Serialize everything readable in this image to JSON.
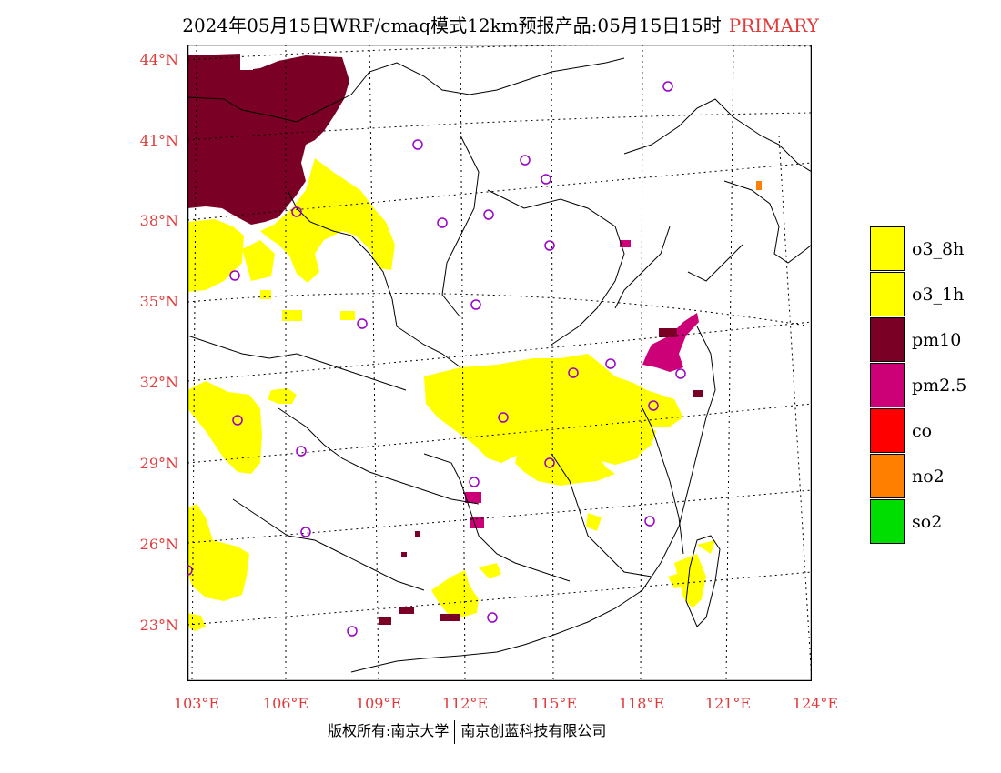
{
  "title": {
    "main": "2024年05月15日WRF/cmaq模式12km预报产品:05月15日15时",
    "tag": "PRIMARY"
  },
  "axes": {
    "lat_labels": [
      "44°N",
      "41°N",
      "38°N",
      "35°N",
      "32°N",
      "29°N",
      "26°N",
      "23°N"
    ],
    "lon_labels": [
      "103°E",
      "106°E",
      "109°E",
      "112°E",
      "115°E",
      "118°E",
      "121°E",
      "124°E"
    ]
  },
  "legend": [
    {
      "label": "o3_8h",
      "color": "#ffff00"
    },
    {
      "label": "o3_1h",
      "color": "#ffff00"
    },
    {
      "label": "pm10",
      "color": "#7a0026"
    },
    {
      "label": "pm2.5",
      "color": "#cc0077"
    },
    {
      "label": "co",
      "color": "#ff0000"
    },
    {
      "label": "no2",
      "color": "#ff8000"
    },
    {
      "label": "so2",
      "color": "#00dd00"
    }
  ],
  "footer": {
    "left": "版权所有:南京大学",
    "right": "南京创蓝科技有限公司"
  }
}
